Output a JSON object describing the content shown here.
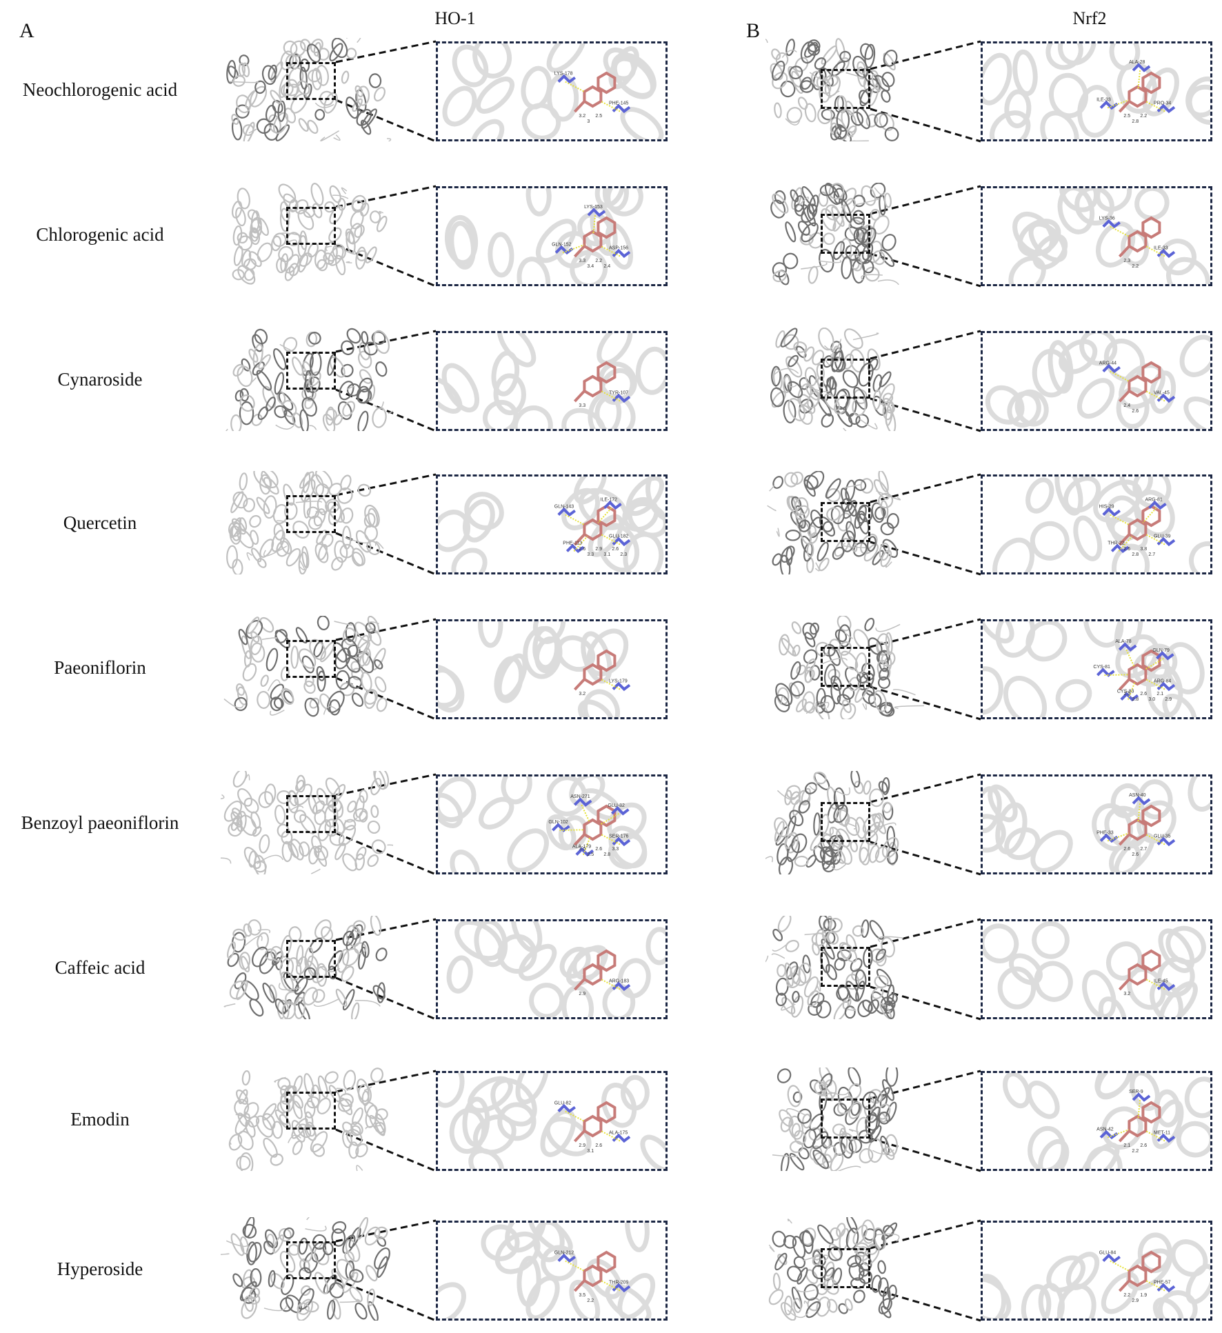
{
  "figure": {
    "panel_a_letter": "A",
    "panel_b_letter": "B",
    "column_titles": {
      "ho1": "HO-1",
      "nrf2": "Nrf2"
    }
  },
  "colors": {
    "protein_cartoon": "#bfbfbf",
    "protein_dark": "#6e6e6e",
    "ligand": "#c77b78",
    "residue": "#5b63d6",
    "hbond": "#e6e23a",
    "inset_border": "#1c2744",
    "zoom_box_border": "#111111"
  },
  "rows": [
    {
      "compound": "Neochlorogenic acid",
      "ho1": {
        "residues": [
          "PHE-145",
          "LYS-178"
        ],
        "distances": [
          "3.2",
          "3",
          "2.5"
        ]
      },
      "nrf2": {
        "residues": [
          "PRO-34",
          "ILE-33",
          "ALA-28"
        ],
        "distances": [
          "2.5",
          "2.8",
          "2.2"
        ]
      }
    },
    {
      "compound": "Chlorogenic acid",
      "ho1": {
        "residues": [
          "ASP-156",
          "GLN-152",
          "LYS-153"
        ],
        "distances": [
          "3.3",
          "3.4",
          "2.2",
          "2.4"
        ]
      },
      "nrf2": {
        "residues": [
          "ILE-33",
          "LYS-36"
        ],
        "distances": [
          "2.3",
          "2.2"
        ]
      }
    },
    {
      "compound": "Cynaroside",
      "ho1": {
        "residues": [
          "TYR-107"
        ],
        "distances": [
          "3.3"
        ]
      },
      "nrf2": {
        "residues": [
          "VAL-45",
          "ARG-44"
        ],
        "distances": [
          "2.4",
          "2.6"
        ]
      }
    },
    {
      "compound": "Quercetin",
      "ho1": {
        "residues": [
          "GLU-182",
          "PHE-113",
          "GLN-143",
          "ILE-172"
        ],
        "distances": [
          "2.6",
          "3.3",
          "2.9",
          "3.1",
          "2.6",
          "2.3"
        ]
      },
      "nrf2": {
        "residues": [
          "GLU-39",
          "THR-22",
          "HIS-29",
          "ARG-81"
        ],
        "distances": [
          "2.6",
          "2.8",
          "3.8",
          "2.7"
        ]
      }
    },
    {
      "compound": "Paeoniflorin",
      "ho1": {
        "residues": [
          "LYS-179"
        ],
        "distances": [
          "3.2"
        ]
      },
      "nrf2": {
        "residues": [
          "ARG-84",
          "CYS-83",
          "CYS-81",
          "ALA-78",
          "GLN-79"
        ],
        "distances": [
          "2.5",
          "2.8",
          "2.6",
          "3.0",
          "2.1",
          "2.9"
        ]
      }
    },
    {
      "compound": "Benzoyl paeoniflorin",
      "ho1": {
        "residues": [
          "SER-176",
          "ALA-179",
          "GLN-102",
          "ASN-271",
          "GLU-82"
        ],
        "distances": [
          "3.0",
          "2.5",
          "2.6",
          "2.8",
          "3.3"
        ]
      },
      "nrf2": {
        "residues": [
          "GLU-35",
          "PHE-33",
          "ASN-40"
        ],
        "distances": [
          "2.6",
          "2.6",
          "2.7"
        ]
      }
    },
    {
      "compound": "Caffeic acid",
      "ho1": {
        "residues": [
          "ARG-183"
        ],
        "distances": [
          "2.9"
        ]
      },
      "nrf2": {
        "residues": [
          "ILE-45"
        ],
        "distances": [
          "3.2"
        ]
      }
    },
    {
      "compound": "Emodin",
      "ho1": {
        "residues": [
          "ALA-175",
          "GLU-82"
        ],
        "distances": [
          "2.9",
          "3.1",
          "2.6"
        ]
      },
      "nrf2": {
        "residues": [
          "MET-11",
          "ASN-42",
          "SER-9"
        ],
        "distances": [
          "2.1",
          "2.2",
          "2.6"
        ]
      }
    },
    {
      "compound": "Hyperoside",
      "ho1": {
        "residues": [
          "THR-209",
          "GLN-212"
        ],
        "distances": [
          "3.5",
          "2.2"
        ]
      },
      "nrf2": {
        "residues": [
          "PHE-57",
          "GLU-84"
        ],
        "distances": [
          "2.2",
          "2.9",
          "1.9"
        ]
      }
    }
  ]
}
